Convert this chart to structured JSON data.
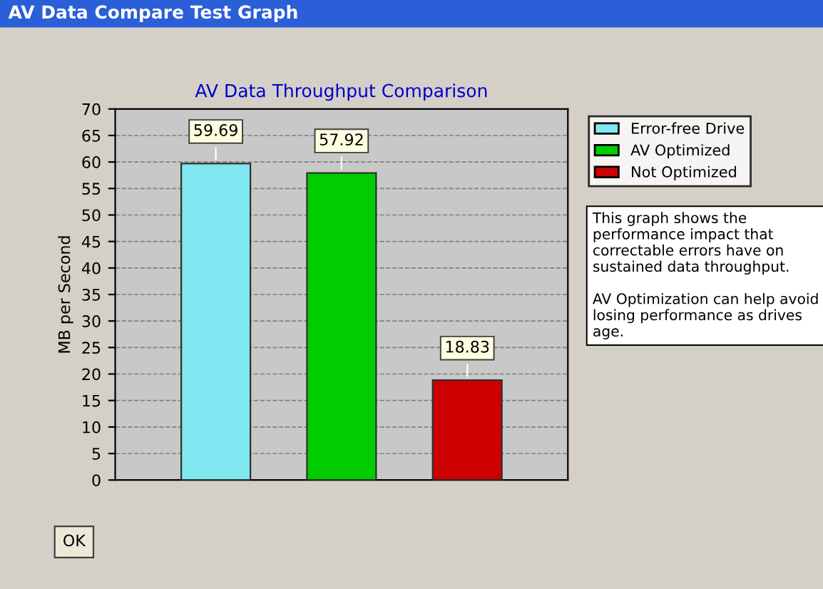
{
  "chart_data": {
    "type": "bar",
    "title": "AV Data Throughput Comparison",
    "ylabel": "MB per Second",
    "categories": [
      null,
      null,
      null
    ],
    "series": [
      {
        "name": "Error-free Drive",
        "color": "#80e8f0",
        "values": [
          59.69,
          null,
          null
        ]
      },
      {
        "name": "AV Optimized",
        "color": "#00cc00",
        "values": [
          null,
          57.92,
          null
        ]
      },
      {
        "name": "Not Optimized",
        "color": "#cc0000",
        "values": [
          null,
          null,
          18.83
        ]
      }
    ],
    "ylim": [
      0,
      70
    ],
    "yticks": [
      0,
      5,
      10,
      15,
      20,
      25,
      30,
      35,
      40,
      45,
      50,
      55,
      60,
      65,
      70
    ],
    "grid": "y",
    "legend": "top right",
    "data_labels": true,
    "annotations": [
      "AV Data Compare Test Graph",
      "This graph shows the performance impact that correctable errors have on sustained data throughput.\n\nAV Optimization can help avoid losing performance as drives age.",
      "OK"
    ]
  }
}
